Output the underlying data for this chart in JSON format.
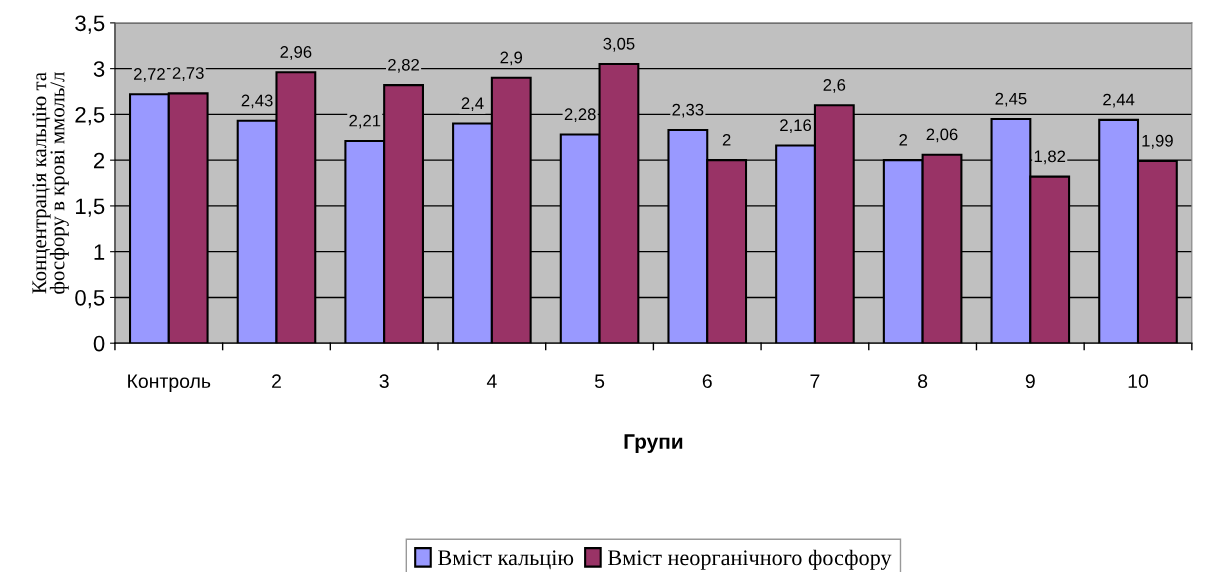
{
  "chart_data": {
    "type": "bar",
    "xlabel": "Групи",
    "ylabel": "Концентрація кальцію та\nфосфору в крові ммоль/л",
    "categories": [
      "Контроль",
      "2",
      "3",
      "4",
      "5",
      "6",
      "7",
      "8",
      "9",
      "10"
    ],
    "series": [
      {
        "name": "Вміст кальцію",
        "color": "#9999ff",
        "values": [
          2.72,
          2.43,
          2.21,
          2.4,
          2.28,
          2.33,
          2.16,
          2,
          2.45,
          2.44
        ],
        "value_labels": [
          "2,72",
          "2,43",
          "2,21",
          "2,4",
          "2,28",
          "2,33",
          "2,16",
          "2",
          "2,45",
          "2,44"
        ]
      },
      {
        "name": "Вміст неорганічного фосфору",
        "color": "#993366",
        "values": [
          2.73,
          2.96,
          2.82,
          2.9,
          3.05,
          2,
          2.6,
          2.06,
          1.82,
          1.99
        ],
        "value_labels": [
          "2,73",
          "2,96",
          "2,82",
          "2,9",
          "3,05",
          "2",
          "2,6",
          "2,06",
          "1,82",
          "1,99"
        ]
      }
    ],
    "ylim": [
      0,
      3.5
    ],
    "yticks": [
      0,
      {
        "value": 0.5,
        "label": "0,5"
      },
      1,
      {
        "value": 1.5,
        "label": "1,5"
      },
      2,
      {
        "value": 2.5,
        "label": "2,5"
      },
      3,
      {
        "value": 3.5,
        "label": "3,5"
      }
    ],
    "grid": "y",
    "legend": "bottom"
  }
}
